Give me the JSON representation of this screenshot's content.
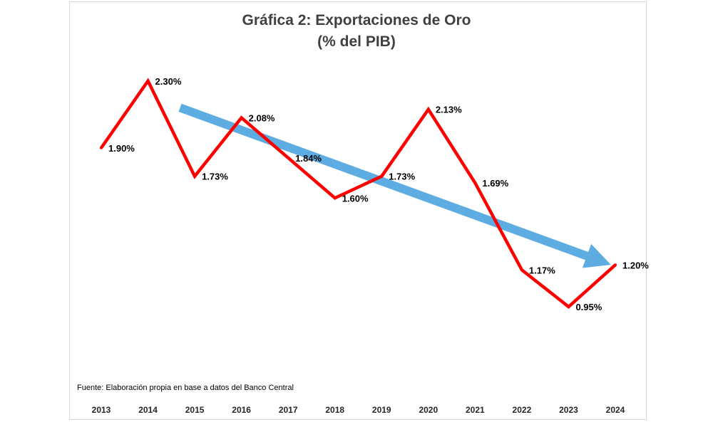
{
  "chart_data": {
    "type": "line",
    "title": "Gráfica 2: Exportaciones de Oro",
    "subtitle": "(% del PIB)",
    "categories": [
      "2013",
      "2014",
      "2015",
      "2016",
      "2017",
      "2018",
      "2019",
      "2020",
      "2021",
      "2022",
      "2023",
      "2024"
    ],
    "series": [
      {
        "values": [
          1.9,
          2.3,
          1.73,
          2.08,
          1.84,
          1.6,
          1.73,
          2.13,
          1.69,
          1.17,
          0.95,
          1.2
        ],
        "labels": [
          "1.90%",
          "2.30%",
          "1.73%",
          "2.08%",
          "1.84%",
          "1.60%",
          "1.73%",
          "2.13%",
          "1.69%",
          "1.17%",
          "0.95%",
          "1.20%"
        ],
        "color": "#ff0000"
      }
    ],
    "trend_arrow": {
      "color": "#5dade2",
      "from_value": 2.14,
      "to_value": 1.2
    },
    "ylim": [
      0.55,
      2.55
    ],
    "grid": false,
    "source": "Fuente: Elaboración propia en base a datos del Banco Central"
  }
}
